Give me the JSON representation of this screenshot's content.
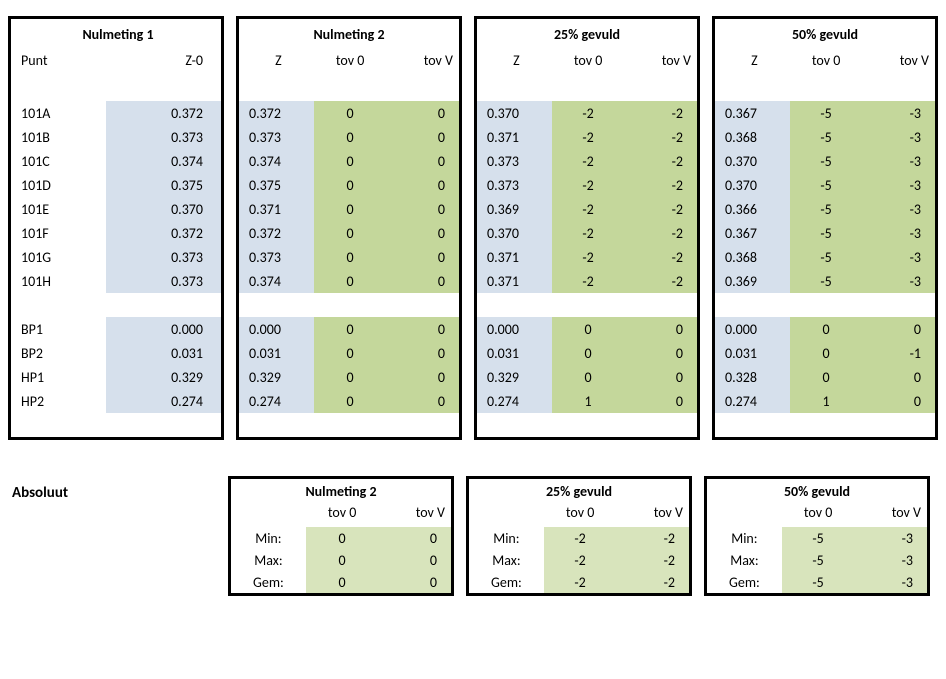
{
  "colors": {
    "border": "#000000",
    "blue_bg": "#d6e0ec",
    "green_bg": "#c4d79b",
    "light_green_bg": "#d8e4bc",
    "page_bg": "#ffffff",
    "text": "#000000"
  },
  "top": {
    "nul1": {
      "title": "Nulmeting 1",
      "col_labels": {
        "punt": "Punt",
        "z0": "Z-0"
      }
    },
    "panels": [
      {
        "title": "Nulmeting 2",
        "cols": {
          "z": "Z",
          "tov0": "tov 0",
          "tovV": "tov V"
        }
      },
      {
        "title": "25% gevuld",
        "cols": {
          "z": "Z",
          "tov0": "tov 0",
          "tovV": "tov V"
        }
      },
      {
        "title": "50% gevuld",
        "cols": {
          "z": "Z",
          "tov0": "tov 0",
          "tovV": "tov V"
        }
      }
    ],
    "groups": [
      [
        {
          "id": "101A",
          "z0": "0.372",
          "vals": [
            [
              "0.372",
              "0",
              "0"
            ],
            [
              "0.370",
              "-2",
              "-2"
            ],
            [
              "0.367",
              "-5",
              "-3"
            ]
          ]
        },
        {
          "id": "101B",
          "z0": "0.373",
          "vals": [
            [
              "0.373",
              "0",
              "0"
            ],
            [
              "0.371",
              "-2",
              "-2"
            ],
            [
              "0.368",
              "-5",
              "-3"
            ]
          ]
        },
        {
          "id": "101C",
          "z0": "0.374",
          "vals": [
            [
              "0.374",
              "0",
              "0"
            ],
            [
              "0.373",
              "-2",
              "-2"
            ],
            [
              "0.370",
              "-5",
              "-3"
            ]
          ]
        },
        {
          "id": "101D",
          "z0": "0.375",
          "vals": [
            [
              "0.375",
              "0",
              "0"
            ],
            [
              "0.373",
              "-2",
              "-2"
            ],
            [
              "0.370",
              "-5",
              "-3"
            ]
          ]
        },
        {
          "id": "101E",
          "z0": "0.370",
          "vals": [
            [
              "0.371",
              "0",
              "0"
            ],
            [
              "0.369",
              "-2",
              "-2"
            ],
            [
              "0.366",
              "-5",
              "-3"
            ]
          ]
        },
        {
          "id": "101F",
          "z0": "0.372",
          "vals": [
            [
              "0.372",
              "0",
              "0"
            ],
            [
              "0.370",
              "-2",
              "-2"
            ],
            [
              "0.367",
              "-5",
              "-3"
            ]
          ]
        },
        {
          "id": "101G",
          "z0": "0.373",
          "vals": [
            [
              "0.373",
              "0",
              "0"
            ],
            [
              "0.371",
              "-2",
              "-2"
            ],
            [
              "0.368",
              "-5",
              "-3"
            ]
          ]
        },
        {
          "id": "101H",
          "z0": "0.373",
          "vals": [
            [
              "0.374",
              "0",
              "0"
            ],
            [
              "0.371",
              "-2",
              "-2"
            ],
            [
              "0.369",
              "-5",
              "-3"
            ]
          ]
        }
      ],
      [
        {
          "id": "BP1",
          "z0": "0.000",
          "vals": [
            [
              "0.000",
              "0",
              "0"
            ],
            [
              "0.000",
              "0",
              "0"
            ],
            [
              "0.000",
              "0",
              "0"
            ]
          ]
        },
        {
          "id": "BP2",
          "z0": "0.031",
          "vals": [
            [
              "0.031",
              "0",
              "0"
            ],
            [
              "0.031",
              "0",
              "0"
            ],
            [
              "0.031",
              "0",
              "-1"
            ]
          ]
        },
        {
          "id": "HP1",
          "z0": "0.329",
          "vals": [
            [
              "0.329",
              "0",
              "0"
            ],
            [
              "0.329",
              "0",
              "0"
            ],
            [
              "0.328",
              "0",
              "0"
            ]
          ]
        },
        {
          "id": "HP2",
          "z0": "0.274",
          "vals": [
            [
              "0.274",
              "0",
              "0"
            ],
            [
              "0.274",
              "1",
              "0"
            ],
            [
              "0.274",
              "1",
              "0"
            ]
          ]
        }
      ]
    ]
  },
  "bottom": {
    "label": "Absoluut",
    "stat_labels": {
      "min": "Min:",
      "max": "Max:",
      "gem": "Gem:"
    },
    "panels": [
      {
        "title": "Nulmeting 2",
        "cols": {
          "tov0": "tov 0",
          "tovV": "tov V"
        },
        "rows": [
          [
            "0",
            "0"
          ],
          [
            "0",
            "0"
          ],
          [
            "0",
            "0"
          ]
        ]
      },
      {
        "title": "25% gevuld",
        "cols": {
          "tov0": "tov 0",
          "tovV": "tov V"
        },
        "rows": [
          [
            "-2",
            "-2"
          ],
          [
            "-2",
            "-2"
          ],
          [
            "-2",
            "-2"
          ]
        ]
      },
      {
        "title": "50% gevuld",
        "cols": {
          "tov0": "tov 0",
          "tovV": "tov V"
        },
        "rows": [
          [
            "-5",
            "-3"
          ],
          [
            "-5",
            "-3"
          ],
          [
            "-5",
            "-3"
          ]
        ]
      }
    ]
  }
}
